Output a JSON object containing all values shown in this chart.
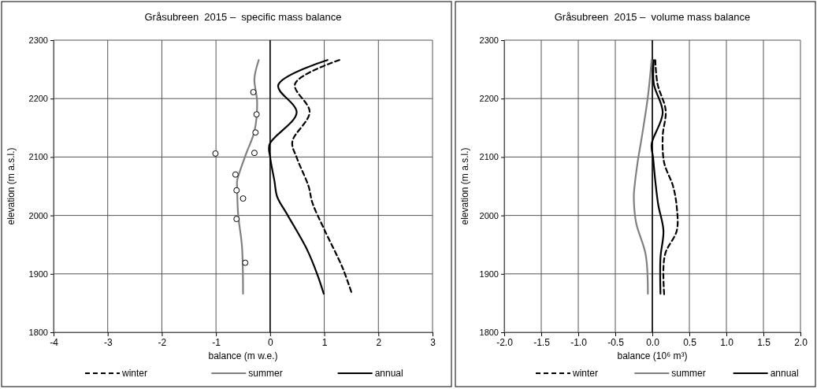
{
  "chart_data": [
    {
      "type": "line",
      "title": "Gråsubreen  2015 –  specific mass balance",
      "xlabel": "balance (m w.e.)",
      "ylabel": "elevation (m a.s.l.)",
      "xlim": [
        -4,
        3
      ],
      "xticks": [
        -4,
        -3,
        -2,
        -1,
        0,
        1,
        2,
        3
      ],
      "ylim": [
        1800,
        2300
      ],
      "yticks": [
        1800,
        1900,
        2000,
        2100,
        2200,
        2300
      ],
      "grid": true,
      "legend": "bottom",
      "series": [
        {
          "name": "winter",
          "color": "#000000",
          "line_style": "dashed",
          "x": [
            1.28,
            0.46,
            0.73,
            0.41,
            0.5,
            0.71,
            0.78,
            0.99,
            1.34,
            1.51
          ],
          "values": [
            2266,
            2225,
            2177,
            2126,
            2097,
            2050,
            2022,
            1978,
            1910,
            1866
          ]
        },
        {
          "name": "summer",
          "color": "#808080",
          "line_style": "solid",
          "x": [
            -0.21,
            -0.29,
            -0.24,
            -0.29,
            -0.45,
            -0.61,
            -0.61,
            -0.59,
            -0.52,
            -0.5
          ],
          "values": [
            2266,
            2234,
            2194,
            2144,
            2104,
            2059,
            2050,
            2001,
            1947,
            1866
          ]
        },
        {
          "name": "annual",
          "color": "#000000",
          "line_style": "solid",
          "x": [
            1.06,
            0.15,
            0.49,
            -0.01,
            0,
            0.08,
            0.13,
            0.32,
            0.68,
            0.88,
            0.99
          ],
          "values": [
            2266,
            2223,
            2176,
            2122,
            2100,
            2059,
            2032,
            2001,
            1942,
            1897,
            1866
          ]
        },
        {
          "type": "scatter",
          "marker": "circle",
          "color": "#000000",
          "x": [
            -0.31,
            -0.25,
            -0.27,
            -1.01,
            -0.29,
            -0.64,
            -0.62,
            -0.5,
            -0.62,
            -0.46
          ],
          "values": [
            2211,
            2173,
            2142,
            2106,
            2107,
            2070,
            2043,
            2029,
            1994,
            1919
          ]
        }
      ]
    },
    {
      "type": "line",
      "title": "Gråsubreen  2015 –  volume mass balance",
      "xlabel": "balance (10⁶ m³)",
      "ylabel": "elevation (m a.s.l.)",
      "xlim": [
        -2,
        2
      ],
      "xticks": [
        {
          "value": -2,
          "label": "-2.0"
        },
        {
          "value": -1.5,
          "label": "-1.5"
        },
        {
          "value": -1,
          "label": "-1.0"
        },
        {
          "value": -0.5,
          "label": "-0.5"
        },
        {
          "value": 0,
          "label": "0.0"
        },
        {
          "value": 0.5,
          "label": "0.5"
        },
        {
          "value": 1,
          "label": "1.0"
        },
        {
          "value": 1.5,
          "label": "1.5"
        },
        {
          "value": 2,
          "label": "2.0"
        }
      ],
      "ylim": [
        1800,
        2300
      ],
      "yticks": [
        1800,
        1900,
        2000,
        2100,
        2200,
        2300
      ],
      "grid": true,
      "legend": "bottom",
      "series": [
        {
          "name": "winter",
          "color": "#000000",
          "line_style": "dashed",
          "x": [
            0.04,
            0.07,
            0.18,
            0.14,
            0.16,
            0.28,
            0.33,
            0.33,
            0.18,
            0.15,
            0.16
          ],
          "values": [
            2266,
            2225,
            2180,
            2136,
            2090,
            2050,
            2014,
            1974,
            1937,
            1910,
            1863
          ]
        },
        {
          "name": "summer",
          "color": "#808080",
          "line_style": "solid",
          "x": [
            -0.01,
            -0.06,
            -0.14,
            -0.2,
            -0.24,
            -0.25,
            -0.22,
            -0.09,
            -0.06
          ],
          "values": [
            2266,
            2203,
            2136,
            2090,
            2050,
            2032,
            1988,
            1933,
            1866
          ]
        },
        {
          "name": "annual",
          "color": "#000000",
          "line_style": "solid",
          "x": [
            0.02,
            0.02,
            0.14,
            -0.01,
            0.01,
            0.04,
            0.08,
            0.15,
            0.11,
            0.11
          ],
          "values": [
            2266,
            2225,
            2176,
            2122,
            2099,
            2059,
            2018,
            1974,
            1928,
            1866
          ]
        }
      ]
    }
  ]
}
